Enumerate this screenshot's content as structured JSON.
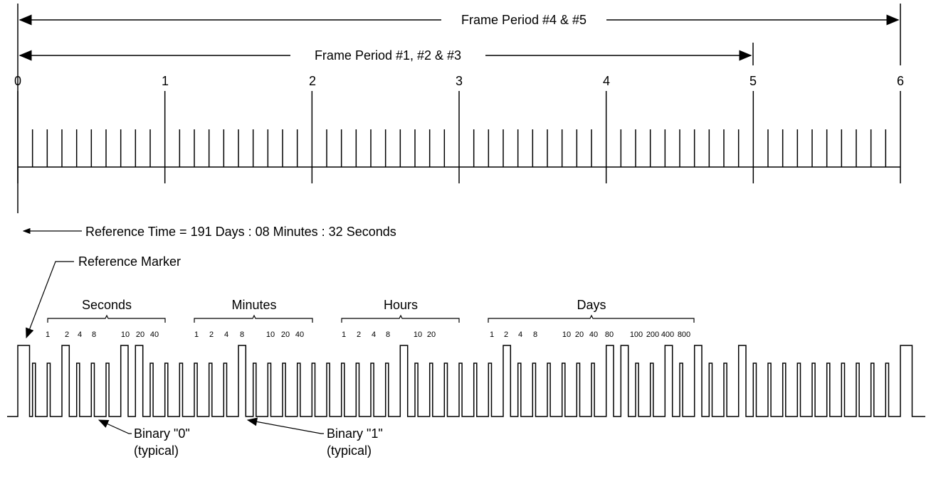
{
  "frame_periods": {
    "period_4_5": "Frame Period #4 & #5",
    "period_1_2_3": "Frame Period #1, #2 & #3"
  },
  "scale_labels": [
    "0",
    "1",
    "2",
    "3",
    "4",
    "5",
    "6"
  ],
  "reference_time": "Reference Time = 191 Days : 08 Minutes : 32 Seconds",
  "reference_marker": "Reference Marker",
  "groups": {
    "seconds": {
      "title": "Seconds",
      "weights": [
        "1",
        "2",
        "4",
        "8",
        "10",
        "20",
        "40"
      ]
    },
    "minutes": {
      "title": "Minutes",
      "weights": [
        "1",
        "2",
        "4",
        "8",
        "10",
        "20",
        "40"
      ]
    },
    "hours": {
      "title": "Hours",
      "weights": [
        "1",
        "2",
        "4",
        "8",
        "10",
        "20"
      ]
    },
    "days": {
      "title": "Days",
      "weights": [
        "1",
        "2",
        "4",
        "8",
        "10",
        "20",
        "40",
        "80",
        "100",
        "200",
        "400",
        "800"
      ]
    }
  },
  "binary_zero": {
    "line1": "Binary \"0\"",
    "line2": "(typical)"
  },
  "binary_one": {
    "line1": "Binary \"1\"",
    "line2": "(typical)"
  },
  "pulse_train": {
    "bits_per_frame": 60,
    "reference_marker_positions": [
      0,
      60
    ],
    "binary_one_positions": [
      3,
      7,
      8,
      15,
      26,
      33,
      40,
      41,
      44,
      46,
      49
    ]
  }
}
